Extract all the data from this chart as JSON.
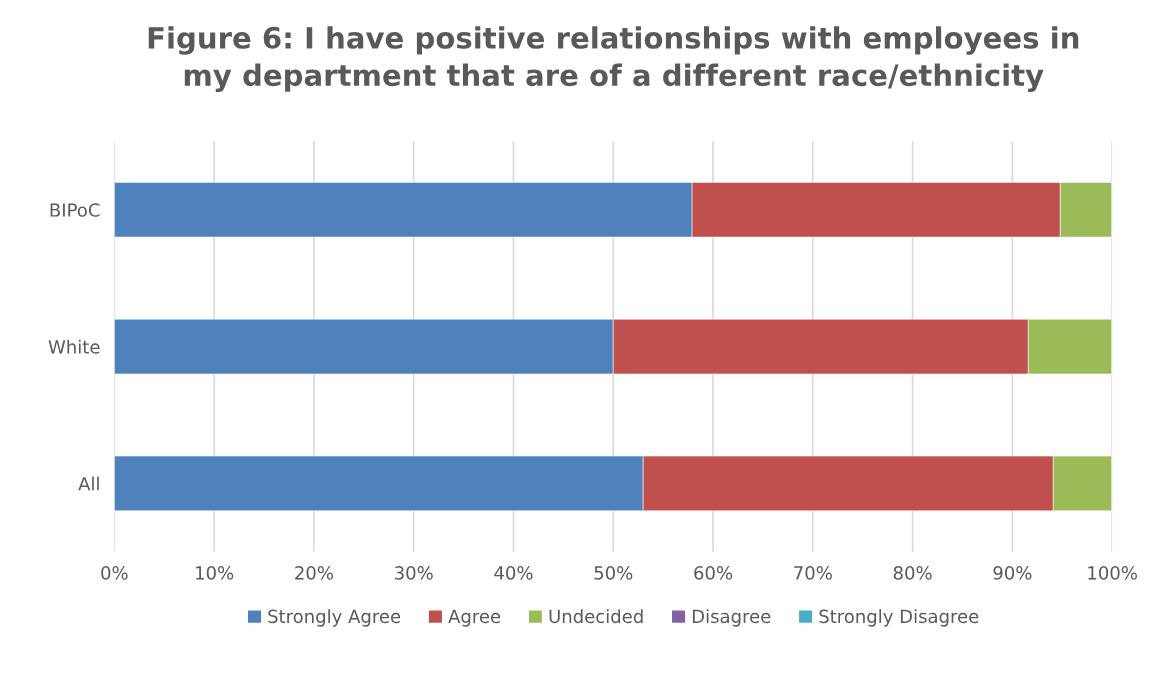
{
  "chart_data": {
    "type": "bar",
    "orientation": "horizontal",
    "stacked": true,
    "title": "Figure 6: I have positive relationships with employees in\nmy department that are of a different race/ethnicity",
    "categories": [
      "BIPoC",
      "White",
      "All"
    ],
    "series": [
      {
        "name": "Strongly Agree",
        "color": "#4f81bd",
        "values": [
          57.9,
          50.0,
          53.0
        ]
      },
      {
        "name": "Agree",
        "color": "#c0504d",
        "values": [
          36.9,
          41.6,
          41.1
        ]
      },
      {
        "name": "Undecided",
        "color": "#9bbb59",
        "values": [
          5.2,
          8.4,
          5.9
        ]
      },
      {
        "name": "Disagree",
        "color": "#8064a2",
        "values": [
          0,
          0,
          0
        ]
      },
      {
        "name": "Strongly Disagree",
        "color": "#4bacc6",
        "values": [
          0,
          0,
          0
        ]
      }
    ],
    "xlim": [
      0,
      100
    ],
    "xticks": [
      {
        "value": 0,
        "label": "0%"
      },
      {
        "value": 10,
        "label": "10%"
      },
      {
        "value": 20,
        "label": "20%"
      },
      {
        "value": 30,
        "label": "30%"
      },
      {
        "value": 40,
        "label": "40%"
      },
      {
        "value": 50,
        "label": "50%"
      },
      {
        "value": 60,
        "label": "60%"
      },
      {
        "value": 70,
        "label": "70%"
      },
      {
        "value": 80,
        "label": "80%"
      },
      {
        "value": 90,
        "label": "90%"
      },
      {
        "value": 100,
        "label": "100%"
      }
    ],
    "grid": "x",
    "legend": "bottom"
  }
}
